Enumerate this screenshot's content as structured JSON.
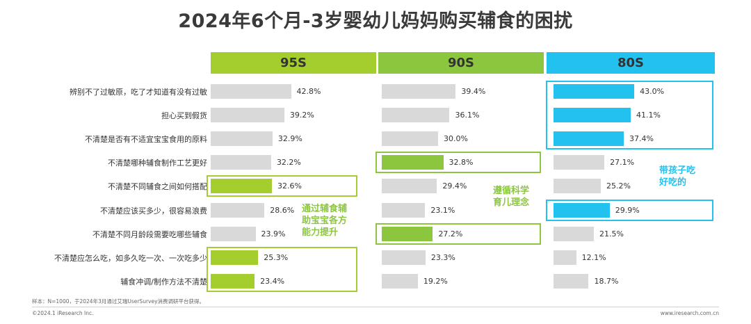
{
  "chart_data": {
    "type": "bar",
    "title": "2024年6个月-3岁婴幼儿妈妈购买辅食的困扰",
    "categories": [
      "辨别不了过敏原，吃了才知道有没有过敏",
      "担心买到假货",
      "不清楚是否有不适宜宝宝食用的原料",
      "不清楚哪种辅食制作工艺更好",
      "不清楚不同辅食之间如何搭配",
      "不清楚应该买多少，很容易浪费",
      "不清楚不同月龄段需要吃哪些辅食",
      "不清楚应怎么吃，如多久吃一次、一次吃多少",
      "辅食冲调/制作方法不清楚"
    ],
    "series": [
      {
        "name": "95S",
        "values": [
          42.8,
          39.2,
          32.9,
          32.2,
          32.6,
          28.6,
          23.9,
          25.3,
          23.4
        ],
        "labels": [
          "42.8%",
          "39.2%",
          "32.9%",
          "32.2%",
          "32.6%",
          "28.6%",
          "23.9%",
          "25.3%",
          "23.4%"
        ],
        "highlight": [
          4,
          7,
          8
        ]
      },
      {
        "name": "90S",
        "values": [
          39.4,
          36.1,
          30.0,
          32.8,
          29.4,
          23.1,
          27.2,
          23.3,
          19.2
        ],
        "labels": [
          "39.4%",
          "36.1%",
          "30.0%",
          "32.8%",
          "29.4%",
          "23.1%",
          "27.2%",
          "23.3%",
          "19.2%"
        ],
        "highlight": [
          3,
          6
        ]
      },
      {
        "name": "80S",
        "values": [
          43.0,
          41.1,
          37.4,
          27.1,
          25.2,
          29.9,
          21.5,
          12.1,
          18.7
        ],
        "labels": [
          "43.0%",
          "41.1%",
          "37.4%",
          "27.1%",
          "25.2%",
          "29.9%",
          "21.5%",
          "12.1%",
          "18.7%"
        ],
        "highlight": [
          0,
          1,
          2,
          5
        ]
      }
    ],
    "colors": {
      "95S": "#a4cd2e",
      "90S": "#8cc63f",
      "80S": "#22c1ee",
      "default_bar": "#d9d9d9"
    },
    "annotations": [
      {
        "series": "95S",
        "text": [
          "通过辅食辅",
          "助宝宝各方",
          "能力提升"
        ],
        "color": "#8cc63f"
      },
      {
        "series": "90S",
        "text": [
          "遵循科学",
          "育儿理念"
        ],
        "color": "#8cc63f"
      },
      {
        "series": "80S",
        "text": [
          "带孩子吃",
          "好吃的"
        ],
        "color": "#22c1ee"
      }
    ]
  },
  "note": "样本：N=1000，于2024年3月通过艾瑞UserSurvey消费调研平台获得。",
  "footer": {
    "left": "©2024.1 iResearch Inc.",
    "right": "www.iresearch.com.cn"
  }
}
